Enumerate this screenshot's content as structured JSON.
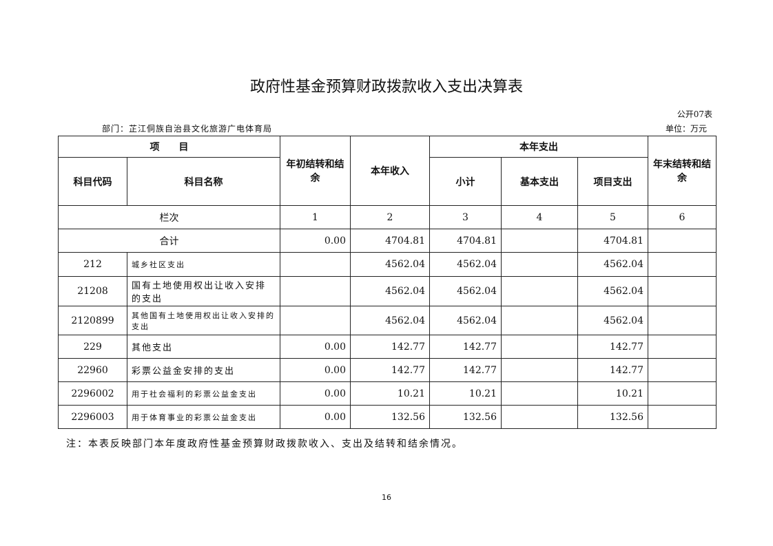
{
  "title": "政府性基金预算财政拨款收入支出决算表",
  "table_no": "公开07表",
  "department": "部门：芷江侗族自治县文化旅游广电体育局",
  "unit": "单位：万元",
  "headers": {
    "item": "项　　目",
    "code": "科目代码",
    "name": "科目名称",
    "opening": "年初结转和结余",
    "income": "本年收入",
    "expense": "本年支出",
    "subtotal": "小计",
    "basic": "基本支出",
    "project": "项目支出",
    "closing": "年末结转和结余"
  },
  "column_index": {
    "label": "栏次",
    "cols": [
      "1",
      "2",
      "3",
      "4",
      "5",
      "6"
    ]
  },
  "total": {
    "label": "合计",
    "opening": "0.00",
    "income": "4704.81",
    "subtotal": "4704.81",
    "basic": "",
    "project": "4704.81",
    "closing": ""
  },
  "rows": [
    {
      "code": "212",
      "name": "城乡社区支出",
      "opening": "",
      "income": "4562.04",
      "subtotal": "4562.04",
      "basic": "",
      "project": "4562.04",
      "closing": ""
    },
    {
      "code": "21208",
      "name": "国有土地使用权出让收入安排的支出",
      "opening": "",
      "income": "4562.04",
      "subtotal": "4562.04",
      "basic": "",
      "project": "4562.04",
      "closing": ""
    },
    {
      "code": "2120899",
      "name": "其他国有土地使用权出让收入安排的支出",
      "opening": "",
      "income": "4562.04",
      "subtotal": "4562.04",
      "basic": "",
      "project": "4562.04",
      "closing": ""
    },
    {
      "code": "229",
      "name": "其他支出",
      "opening": "0.00",
      "income": "142.77",
      "subtotal": "142.77",
      "basic": "",
      "project": "142.77",
      "closing": ""
    },
    {
      "code": "22960",
      "name": "彩票公益金安排的支出",
      "opening": "0.00",
      "income": "142.77",
      "subtotal": "142.77",
      "basic": "",
      "project": "142.77",
      "closing": ""
    },
    {
      "code": "2296002",
      "name": "用于社会福利的彩票公益金支出",
      "opening": "0.00",
      "income": "10.21",
      "subtotal": "10.21",
      "basic": "",
      "project": "10.21",
      "closing": ""
    },
    {
      "code": "2296003",
      "name": "用于体育事业的彩票公益金支出",
      "opening": "0.00",
      "income": "132.56",
      "subtotal": "132.56",
      "basic": "",
      "project": "132.56",
      "closing": ""
    }
  ],
  "note": "注：本表反映部门本年度政府性基金预算财政拨款收入、支出及结转和结余情况。",
  "page_number": "16"
}
